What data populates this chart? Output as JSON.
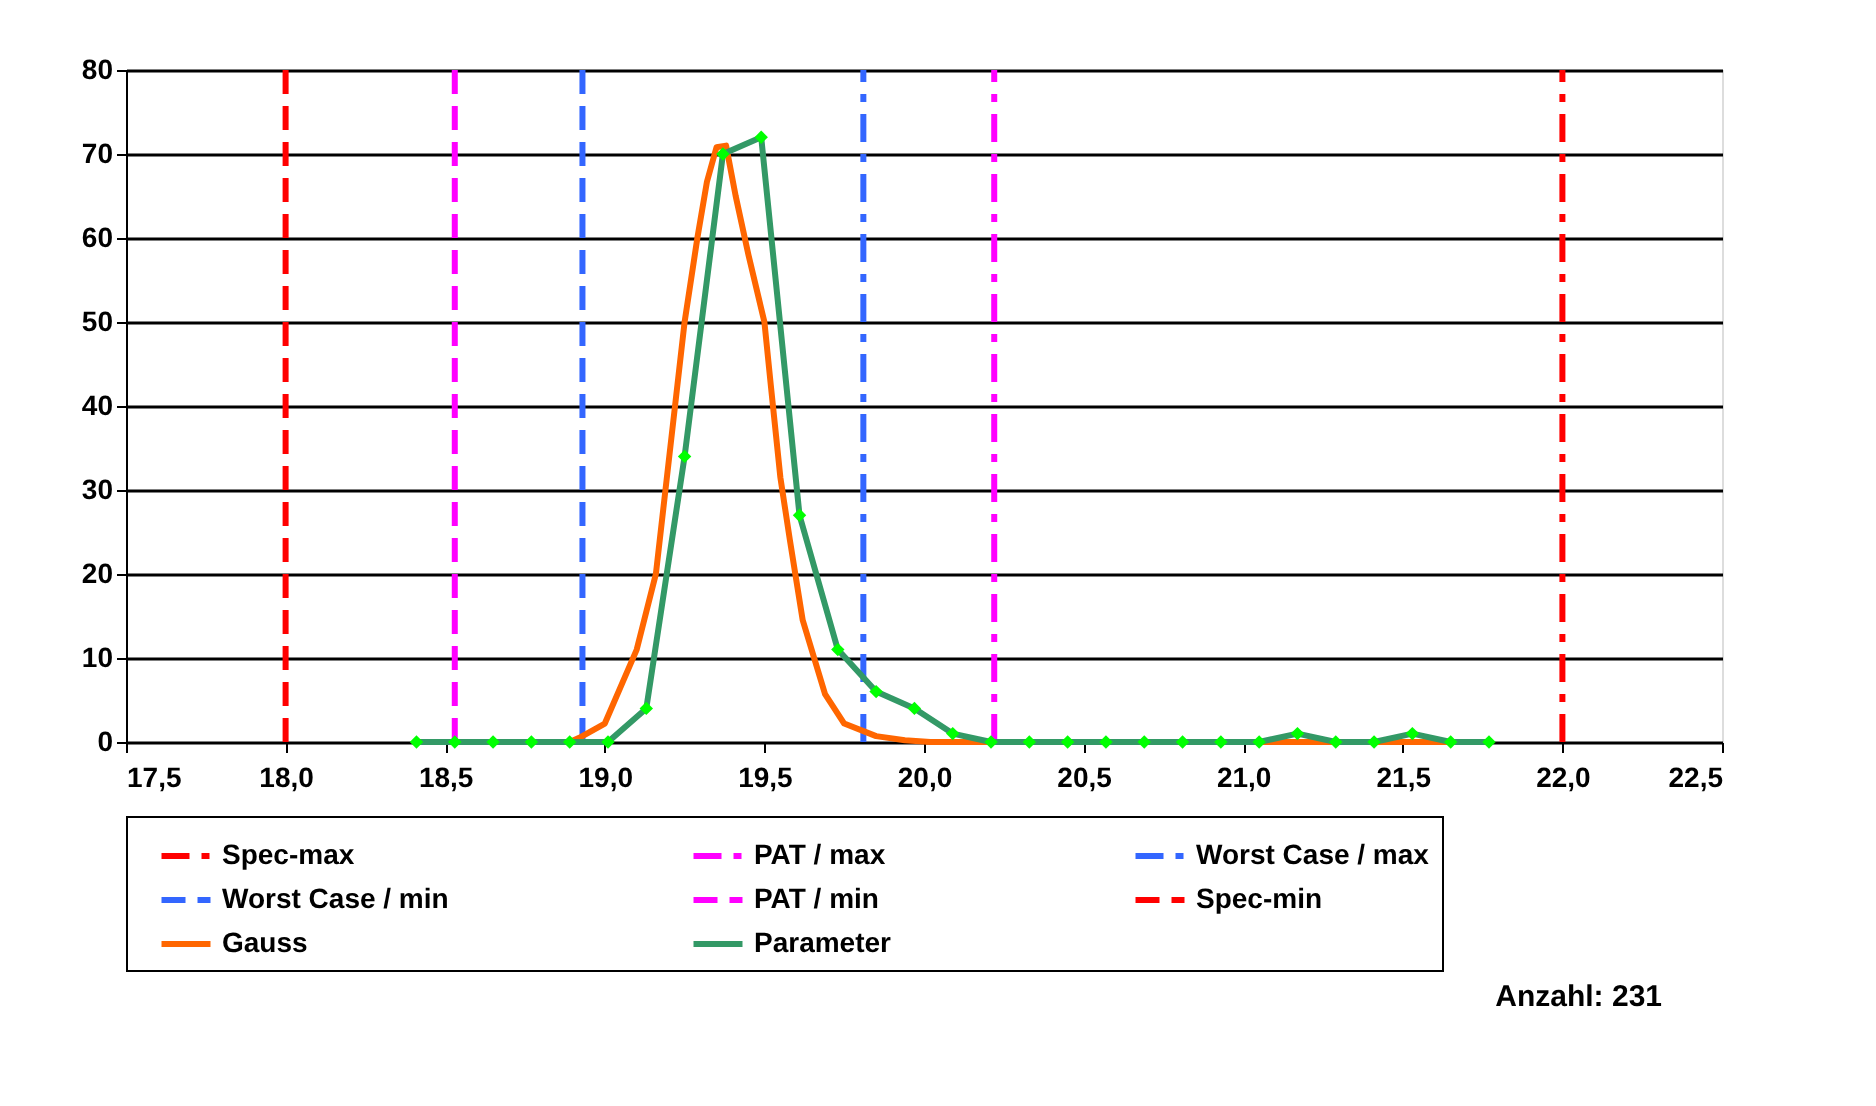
{
  "chart_data": {
    "type": "line",
    "xlim": [
      17.5,
      22.5
    ],
    "xticks": [
      {
        "value": 17.5,
        "label": "17,5"
      },
      {
        "value": 18,
        "label": "18,0"
      },
      {
        "value": 18.5,
        "label": "18,5"
      },
      {
        "value": 19,
        "label": "19,0"
      },
      {
        "value": 19.5,
        "label": "19,5"
      },
      {
        "value": 20,
        "label": "20,0"
      },
      {
        "value": 20.5,
        "label": "20,5"
      },
      {
        "value": 21,
        "label": "21,0"
      },
      {
        "value": 21.5,
        "label": "21,5"
      },
      {
        "value": 22,
        "label": "22,0"
      },
      {
        "value": 22.5,
        "label": "22,5"
      }
    ],
    "ylim": [
      0,
      80
    ],
    "yticks": [
      0,
      10,
      20,
      30,
      40,
      50,
      60,
      70,
      80
    ],
    "grid": "y",
    "legend": "bottom",
    "annotations": [
      "Anzahl: 231"
    ],
    "ref_lines": [
      {
        "axis": "x",
        "value": 22.0,
        "label": "Spec-max",
        "color": "#ff0000",
        "line_style": "dotted"
      },
      {
        "axis": "x",
        "value": 20.22,
        "label": "PAT / max",
        "color": "#ff00ff",
        "line_style": "dotted"
      },
      {
        "axis": "x",
        "value": 19.81,
        "label": "Worst Case / max",
        "color": "#3366ff",
        "line_style": "dotted"
      },
      {
        "axis": "x",
        "value": 18.93,
        "label": "Worst Case / min",
        "color": "#3366ff",
        "line_style": "dashed"
      },
      {
        "axis": "x",
        "value": 18.53,
        "label": "PAT / min",
        "color": "#ff00ff",
        "line_style": "dashed"
      },
      {
        "axis": "x",
        "value": 18.0,
        "label": "Spec-min",
        "color": "#ff0000",
        "line_style": "dashed"
      }
    ],
    "series": [
      {
        "name": "Gauss",
        "color": "#ff6600",
        "line_style": "solid",
        "x": [
          18.41,
          18.89,
          18.92,
          19.0,
          19.1,
          19.16,
          19.19,
          19.22,
          19.25,
          19.29,
          19.32,
          19.35,
          19.38,
          19.41,
          19.45,
          19.5,
          19.52,
          19.55,
          19.58,
          19.62,
          19.69,
          19.75,
          19.85,
          19.94,
          20.02,
          21.78
        ],
        "values": [
          0,
          0,
          0.5,
          2.2,
          11,
          20,
          30,
          40,
          50,
          60,
          66.7,
          70.8,
          71,
          65,
          58,
          50,
          42.5,
          31.5,
          24,
          14.5,
          5.7,
          2.2,
          0.7,
          0.2,
          0,
          0
        ]
      },
      {
        "name": "Parameter",
        "color": "#339966",
        "line_style": "solid",
        "marker": "diamond",
        "x": [
          18.41,
          18.53,
          18.65,
          18.77,
          18.89,
          19.01,
          19.13,
          19.25,
          19.37,
          19.49,
          19.61,
          19.73,
          19.85,
          19.97,
          20.09,
          20.21,
          20.33,
          20.45,
          20.57,
          20.69,
          20.81,
          20.93,
          21.05,
          21.17,
          21.29,
          21.41,
          21.53,
          21.65,
          21.77
        ],
        "values": [
          0,
          0,
          0,
          0,
          0,
          0,
          4,
          34,
          70,
          72,
          27,
          11,
          6,
          4,
          1,
          0,
          0,
          0,
          0,
          0,
          0,
          0,
          0,
          1,
          0,
          0,
          1,
          0,
          0
        ]
      }
    ]
  }
}
